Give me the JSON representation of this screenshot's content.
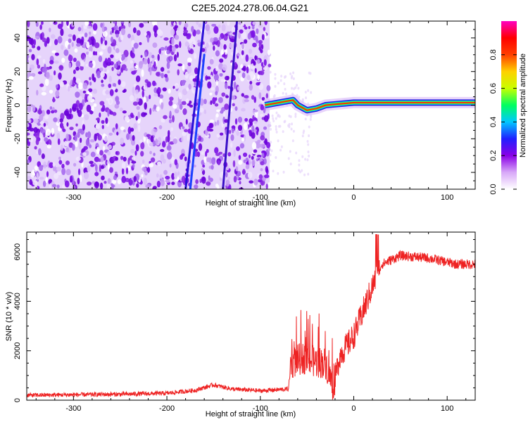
{
  "figure": {
    "title": "C2E5.2024.278.06.04.G21"
  },
  "chart_data": [
    {
      "type": "heatmap",
      "xlabel": "Height of straight line (km)",
      "ylabel": "Frequency (Hz)",
      "xlim": [
        -350,
        130
      ],
      "ylim": [
        -50,
        50
      ],
      "x_ticks": [
        -300,
        -200,
        -100,
        0,
        100
      ],
      "y_ticks": [
        -40,
        -20,
        0,
        20,
        40
      ],
      "colorbar": {
        "label": "Normalized spectral amplitude",
        "range": [
          0,
          1
        ],
        "ticks": [
          0.0,
          0.2,
          0.4,
          0.6,
          0.8
        ],
        "colormap": [
          "#ffffff",
          "#d8a8f8",
          "#8a00e6",
          "#2020ff",
          "#00c8ff",
          "#00ff60",
          "#c8ff00",
          "#ffd000",
          "#ff4000",
          "#ff0000",
          "#ff00c0"
        ]
      },
      "noise_region_x": [
        -350,
        -90
      ],
      "carrier_trace": [
        {
          "x": -95,
          "y": 0
        },
        {
          "x": -85,
          "y": 1
        },
        {
          "x": -75,
          "y": 2
        },
        {
          "x": -65,
          "y": 3
        },
        {
          "x": -60,
          "y": 0
        },
        {
          "x": -50,
          "y": -3
        },
        {
          "x": -40,
          "y": -2
        },
        {
          "x": -30,
          "y": 0
        },
        {
          "x": -20,
          "y": 0.5
        },
        {
          "x": -10,
          "y": 1
        },
        {
          "x": 0,
          "y": 1.5
        },
        {
          "x": 40,
          "y": 1.5
        },
        {
          "x": 90,
          "y": 1.5
        },
        {
          "x": 130,
          "y": 1.5
        }
      ],
      "diagonal_streaks": [
        {
          "x1": -180,
          "y1": -50,
          "x2": -160,
          "y2": 50,
          "color": "#2a10d8"
        },
        {
          "x1": -175,
          "y1": -50,
          "x2": -160,
          "y2": 30,
          "color": "#1a40ff"
        },
        {
          "x1": -140,
          "y1": -50,
          "x2": -125,
          "y2": 50,
          "color": "#3a10c8"
        }
      ]
    },
    {
      "type": "line",
      "xlabel": "Height of straight line (km)",
      "ylabel": "SNR (10 * v/v)",
      "xlim": [
        -350,
        130
      ],
      "ylim": [
        0,
        6800
      ],
      "x_ticks": [
        -300,
        -200,
        -100,
        0,
        100
      ],
      "y_ticks": [
        0,
        2000,
        4000,
        6000
      ],
      "series": [
        {
          "color": "#ee2222",
          "profile": [
            {
              "x": -350,
              "y": 200
            },
            {
              "x": -250,
              "y": 240
            },
            {
              "x": -200,
              "y": 280
            },
            {
              "x": -170,
              "y": 400
            },
            {
              "x": -150,
              "y": 620
            },
            {
              "x": -130,
              "y": 450
            },
            {
              "x": -100,
              "y": 380
            },
            {
              "x": -70,
              "y": 450
            },
            {
              "x": -67,
              "y": 1500
            },
            {
              "x": -55,
              "y": 1700
            },
            {
              "x": -40,
              "y": 1550
            },
            {
              "x": -30,
              "y": 1500
            },
            {
              "x": -22,
              "y": 500
            },
            {
              "x": -15,
              "y": 1800
            },
            {
              "x": 0,
              "y": 2600
            },
            {
              "x": 10,
              "y": 3600
            },
            {
              "x": 20,
              "y": 4600
            },
            {
              "x": 30,
              "y": 5500
            },
            {
              "x": 50,
              "y": 5850
            },
            {
              "x": 80,
              "y": 5750
            },
            {
              "x": 110,
              "y": 5500
            },
            {
              "x": 130,
              "y": 5500
            }
          ]
        }
      ]
    }
  ]
}
